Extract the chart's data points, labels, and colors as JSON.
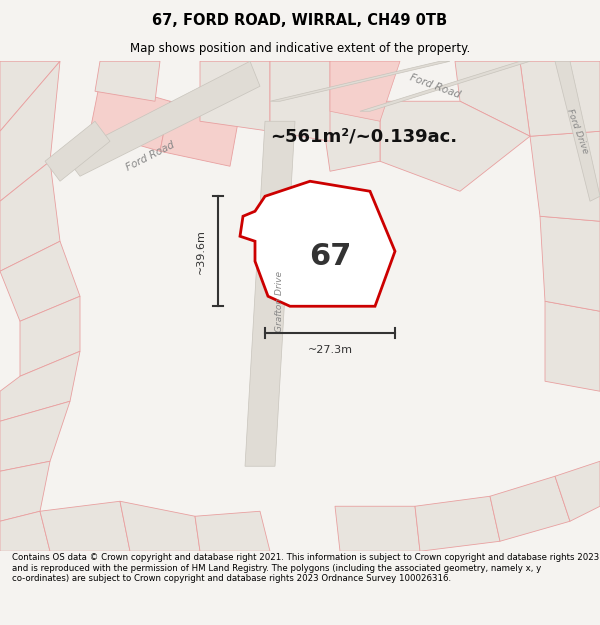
{
  "title": "67, FORD ROAD, WIRRAL, CH49 0TB",
  "subtitle": "Map shows position and indicative extent of the property.",
  "area_text": "~561m²/~0.139ac.",
  "property_number": "67",
  "dim_width": "~27.3m",
  "dim_height": "~39.6m",
  "road_label_grafton": "Grafton Drive",
  "road_label_ford_road": "Ford Road",
  "road_label_ford_road2": "Ford Road",
  "road_label_ford_drive": "Ford Drive",
  "footer": "Contains OS data © Crown copyright and database right 2021. This information is subject to Crown copyright and database rights 2023 and is reproduced with the permission of HM Land Registry. The polygons (including the associated geometry, namely x, y co-ordinates) are subject to Crown copyright and database rights 2023 Ordnance Survey 100026316.",
  "bg_color": "#f5f3f0",
  "map_bg": "#f5f3f0",
  "road_color": "#e8e4de",
  "property_fill": "#ffffff",
  "property_edge": "#cc0000",
  "plot_fill": "#e8e4de",
  "plot_edge": "#e8a0a0",
  "plot_fill_pink": "#f5d0cc",
  "plot_edge_pink": "#e8a0a0",
  "text_color": "#000000",
  "road_text_color": "#888888",
  "dim_color": "#333333"
}
